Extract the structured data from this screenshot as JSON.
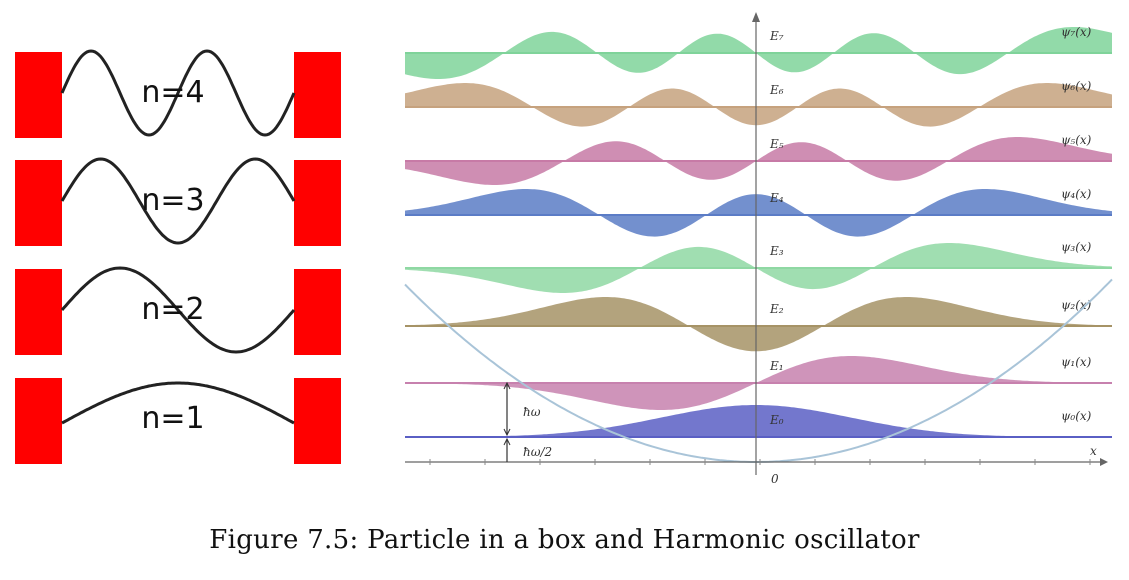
{
  "particle_in_box": {
    "levels": [
      {
        "label": "n=4",
        "n": 4
      },
      {
        "label": "n=3",
        "n": 3
      },
      {
        "label": "n=2",
        "n": 2
      },
      {
        "label": "n=1",
        "n": 1
      }
    ],
    "wall_color": "#ff0000",
    "wave_color": "#222222"
  },
  "harmonic_oscillator": {
    "levels": [
      {
        "n": 7,
        "energy_label": "E₇",
        "psi_label": "ψ₇(x)",
        "color": "#7fd39a"
      },
      {
        "n": 6,
        "energy_label": "E₆",
        "psi_label": "ψ₆(x)",
        "color": "#c6a27e"
      },
      {
        "n": 5,
        "energy_label": "E₅",
        "psi_label": "ψ₅(x)",
        "color": "#c77aa6"
      },
      {
        "n": 4,
        "energy_label": "E₄",
        "psi_label": "ψ₄(x)",
        "color": "#5b7cc6"
      },
      {
        "n": 3,
        "energy_label": "E₃",
        "psi_label": "ψ₃(x)",
        "color": "#8fd8a3"
      },
      {
        "n": 2,
        "energy_label": "E₂",
        "psi_label": "ψ₂(x)",
        "color": "#a69366"
      },
      {
        "n": 1,
        "energy_label": "E₁",
        "psi_label": "ψ₁(x)",
        "color": "#c781ae"
      },
      {
        "n": 0,
        "energy_label": "E₀",
        "psi_label": "ψ₀(x)",
        "color": "#5a5fc4"
      }
    ],
    "spacing_label": "ħω",
    "ground_label": "ħω/2",
    "x_axis_label": "x",
    "origin_label": "0",
    "parabola_color": "#a9c4d8"
  },
  "caption": "Figure 7.5: Particle in a box and Harmonic oscillator"
}
